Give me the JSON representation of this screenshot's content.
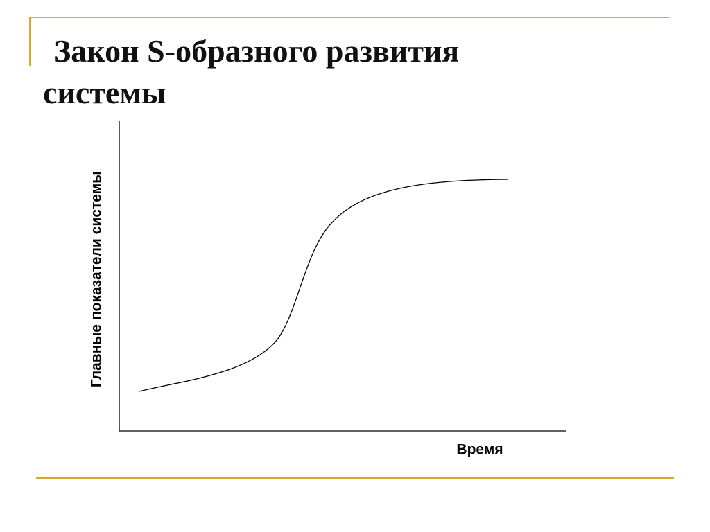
{
  "title": "Закон S-образного развития системы",
  "diagram": {
    "y_axis_label": "Главные показатели системы",
    "x_axis_label": "Время"
  }
}
